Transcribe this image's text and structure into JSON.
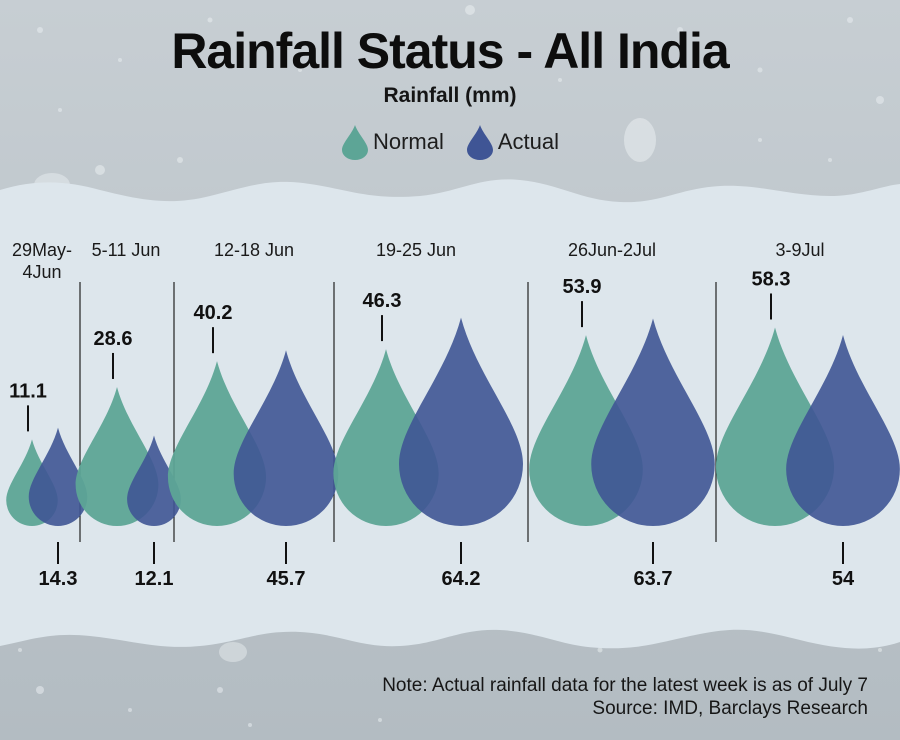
{
  "chart_data": {
    "type": "bar",
    "title": "Rainfall Status - All India",
    "ylabel": "Rainfall (mm)",
    "categories": [
      "29May-4Jun",
      "5-11 Jun",
      "12-18 Jun",
      "19-25 Jun",
      "26Jun-2Jul",
      "3-9Jul"
    ],
    "series": [
      {
        "name": "Normal",
        "color": "#5da596",
        "values": [
          11.1,
          28.6,
          40.2,
          46.3,
          53.9,
          58.3
        ]
      },
      {
        "name": "Actual",
        "color": "#3f5595",
        "values": [
          14.3,
          12.1,
          45.7,
          64.2,
          63.7,
          54
        ]
      }
    ],
    "value_labels": {
      "normal": [
        "11.1",
        "28.6",
        "40.2",
        "46.3",
        "53.9",
        "58.3"
      ],
      "actual": [
        "14.3",
        "12.1",
        "45.7",
        "64.2",
        "63.7",
        "54"
      ]
    }
  },
  "header": {
    "title": "Rainfall Status - All India",
    "subtitle": "Rainfall (mm)"
  },
  "legend": [
    {
      "label": "Normal",
      "color": "#5da596"
    },
    {
      "label": "Actual",
      "color": "#3f5595"
    }
  ],
  "footer": {
    "note": "Note: Actual rainfall data for the latest week is as of July 7",
    "source": "Source: IMD, Barclays Research"
  },
  "colors": {
    "background": "#b8c1c7",
    "band": "#dde6ec"
  }
}
